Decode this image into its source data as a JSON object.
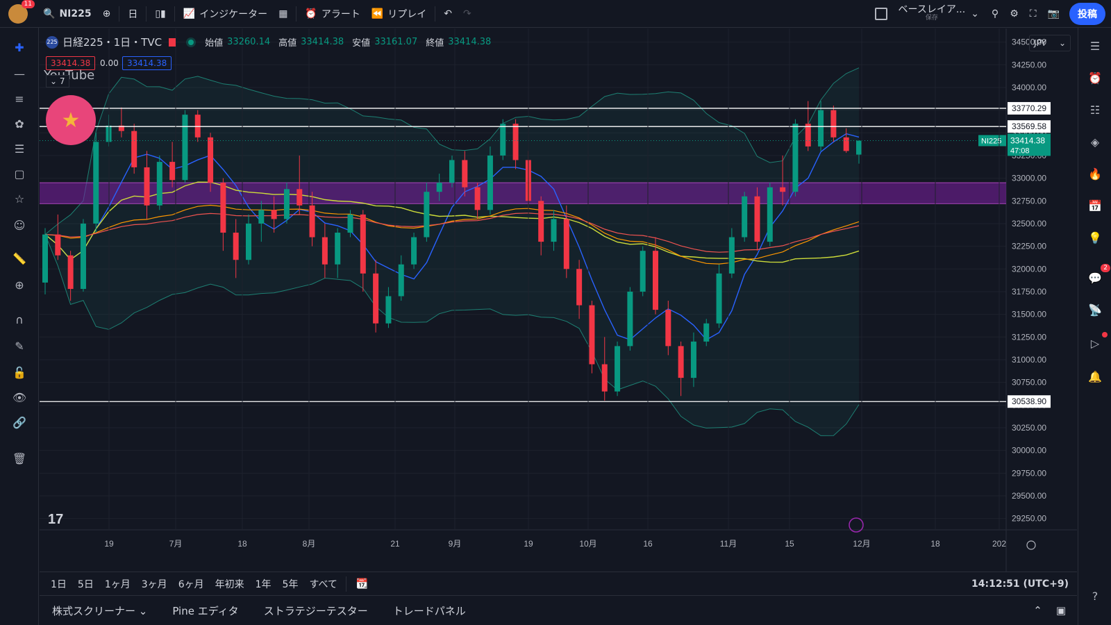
{
  "topbar": {
    "notification_count": "11",
    "symbol": "NI225",
    "interval": "日",
    "indicators_label": "インジケーター",
    "alert_label": "アラート",
    "replay_label": "リプレイ",
    "layout_name": "ベースレイア...",
    "layout_status": "保存",
    "post_label": "投稿"
  },
  "legend": {
    "icon_text": "225",
    "title": "日経225・1日・TVC",
    "open_label": "始値",
    "open": "33260.14",
    "high_label": "高値",
    "high": "33414.38",
    "low_label": "安値",
    "low": "33161.07",
    "close_label": "終値",
    "close": "33414.38",
    "sell": "33414.38",
    "spread": "0.00",
    "buy": "33414.38",
    "collapse_count": "7",
    "overlay_text": "YouTube"
  },
  "currency": "JPY",
  "price_scale": {
    "ticks": [
      "34500.00",
      "34250.00",
      "34000.00",
      "33750.00",
      "33500.00",
      "33250.00",
      "33000.00",
      "32750.00",
      "32500.00",
      "32250.00",
      "32000.00",
      "31750.00",
      "31500.00",
      "31250.00",
      "31000.00",
      "30750.00",
      "30500.00",
      "30250.00",
      "30000.00",
      "29750.00",
      "29500.00",
      "29250.00"
    ],
    "ymin": 29125,
    "ymax": 34650
  },
  "time_scale": {
    "labels": [
      "19",
      "7月",
      "18",
      "8月",
      "21",
      "9月",
      "19",
      "10月",
      "16",
      "11月",
      "15",
      "12月",
      "18",
      "202"
    ]
  },
  "horizontal_lines": [
    {
      "price": 33770.29,
      "label": "33770.29"
    },
    {
      "price": 33569.58,
      "label": "33569.58"
    },
    {
      "price": 30538.9,
      "label": "30538.90"
    }
  ],
  "zone": {
    "top": 32950,
    "bottom": 32720,
    "color": "#7b1fa2"
  },
  "last_price": {
    "symbol": "NI225",
    "price": "33414.38",
    "countdown": "47:08"
  },
  "ranges": [
    "1日",
    "5日",
    "1ヶ月",
    "3ヶ月",
    "6ヶ月",
    "年初来",
    "1年",
    "5年",
    "すべて"
  ],
  "clock": "14:12:51 (UTC+9)",
  "panels": [
    "株式スクリーナー",
    "Pine エディタ",
    "ストラテジーテスター",
    "トレードパネル"
  ],
  "right_badge": "2",
  "colors": {
    "up": "#089981",
    "down": "#f23645",
    "bg": "#131722",
    "accent": "#2962ff"
  },
  "chart_data": {
    "type": "candlestick",
    "x_labels": [
      "19",
      "7月",
      "18",
      "8月",
      "21",
      "9月",
      "19",
      "10月",
      "16",
      "11月",
      "15",
      "12月"
    ],
    "ohlc": [
      [
        31850,
        32450,
        31720,
        32380
      ],
      [
        32380,
        32600,
        32100,
        32150
      ],
      [
        32150,
        32200,
        31650,
        31780
      ],
      [
        31780,
        32550,
        31750,
        32500
      ],
      [
        32500,
        33500,
        32400,
        33400
      ],
      [
        33400,
        33700,
        33350,
        33580
      ],
      [
        33580,
        33780,
        33450,
        33520
      ],
      [
        33520,
        33600,
        33050,
        33120
      ],
      [
        33120,
        33300,
        32550,
        32700
      ],
      [
        32700,
        33250,
        32650,
        33180
      ],
      [
        33180,
        33400,
        32900,
        32980
      ],
      [
        32980,
        33750,
        32950,
        33700
      ],
      [
        33700,
        33750,
        33400,
        33450
      ],
      [
        33450,
        33500,
        32850,
        32950
      ],
      [
        32950,
        33000,
        32200,
        32400
      ],
      [
        32400,
        32550,
        31900,
        32100
      ],
      [
        32100,
        32600,
        32050,
        32500
      ],
      [
        32500,
        32750,
        32300,
        32650
      ],
      [
        32650,
        32800,
        32400,
        32550
      ],
      [
        32550,
        32950,
        32500,
        32880
      ],
      [
        32880,
        33250,
        32600,
        32700
      ],
      [
        32700,
        32850,
        32250,
        32350
      ],
      [
        32350,
        32500,
        31900,
        32050
      ],
      [
        32050,
        32450,
        31900,
        32400
      ],
      [
        32400,
        32650,
        32350,
        32600
      ],
      [
        32600,
        32650,
        31750,
        31950
      ],
      [
        31950,
        32100,
        31300,
        31400
      ],
      [
        31400,
        31800,
        31350,
        31700
      ],
      [
        31700,
        32150,
        31650,
        32050
      ],
      [
        32050,
        32400,
        32000,
        32350
      ],
      [
        32350,
        32950,
        32300,
        32850
      ],
      [
        32850,
        33050,
        32750,
        32950
      ],
      [
        32950,
        33250,
        32900,
        33200
      ],
      [
        33200,
        33300,
        32800,
        32900
      ],
      [
        32900,
        32950,
        32550,
        32650
      ],
      [
        32650,
        33350,
        32600,
        33250
      ],
      [
        33250,
        33650,
        33200,
        33600
      ],
      [
        33600,
        33650,
        33100,
        33200
      ],
      [
        33200,
        33300,
        32650,
        32750
      ],
      [
        32750,
        32800,
        32150,
        32300
      ],
      [
        32300,
        32650,
        32200,
        32550
      ],
      [
        32550,
        32700,
        31900,
        32000
      ],
      [
        32000,
        32100,
        31450,
        31600
      ],
      [
        31600,
        31650,
        30850,
        30950
      ],
      [
        30950,
        31250,
        30550,
        30650
      ],
      [
        30650,
        31200,
        30600,
        31150
      ],
      [
        31150,
        31800,
        31100,
        31750
      ],
      [
        31750,
        32250,
        31700,
        32200
      ],
      [
        32200,
        32350,
        31500,
        31550
      ],
      [
        31550,
        31650,
        31050,
        31150
      ],
      [
        31150,
        31200,
        30600,
        30800
      ],
      [
        30800,
        31300,
        30700,
        31200
      ],
      [
        31200,
        31450,
        31150,
        31400
      ],
      [
        31400,
        32050,
        31350,
        31950
      ],
      [
        31950,
        32450,
        31900,
        32350
      ],
      [
        32350,
        32850,
        32300,
        32800
      ],
      [
        32800,
        32900,
        32200,
        32300
      ],
      [
        32300,
        32950,
        32250,
        32900
      ],
      [
        32900,
        33250,
        32700,
        32850
      ],
      [
        32850,
        33650,
        32800,
        33600
      ],
      [
        33600,
        33850,
        33300,
        33350
      ],
      [
        33350,
        33850,
        33300,
        33750
      ],
      [
        33750,
        33800,
        33400,
        33450
      ],
      [
        33450,
        33550,
        33280,
        33300
      ],
      [
        33260,
        33414,
        33161,
        33414
      ]
    ]
  }
}
